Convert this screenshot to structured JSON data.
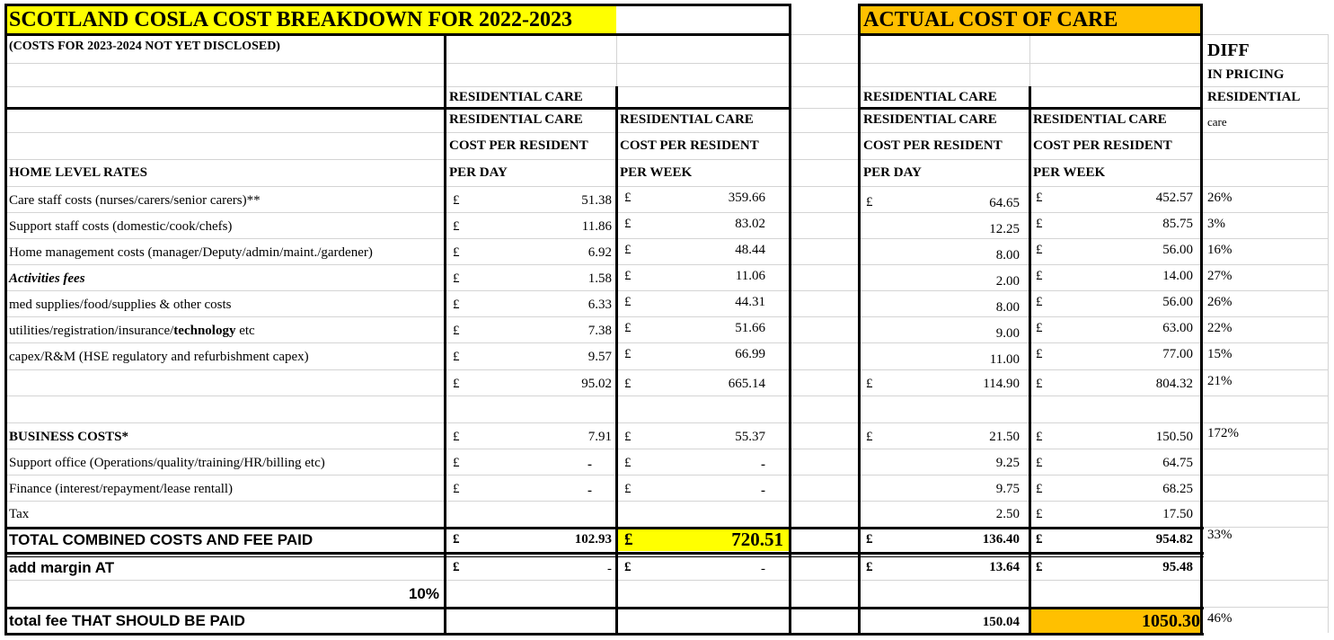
{
  "left": {
    "title": "SCOTLAND COSLA COST BREAKDOWN FOR 2022-2023",
    "subtitle": "(COSTS FOR 2023-2024 NOT YET DISCLOSED)",
    "group_header": "RESIDENTIAL CARE",
    "col_headers": [
      "RESIDENTIAL CARE",
      "RESIDENTIAL CARE"
    ],
    "col_sub": [
      "COST PER RESIDENT",
      "COST PER RESIDENT"
    ],
    "col_unit": [
      "PER DAY",
      "PER WEEK"
    ]
  },
  "right": {
    "title": "ACTUAL COST OF CARE",
    "group_header": "RESIDENTIAL CARE",
    "col_headers": [
      "RESIDENTIAL CARE",
      "RESIDENTIAL CARE"
    ],
    "col_sub": [
      "COST PER RESIDENT",
      "COST PER RESIDENT"
    ],
    "col_unit": [
      "PER DAY",
      "PER WEEK"
    ]
  },
  "diff": {
    "title": "DIFF",
    "line2": "IN PRICING",
    "line3": "RESIDENTIAL",
    "line4": "care"
  },
  "section_label": "HOME LEVEL RATES",
  "currency": "£",
  "rows": [
    {
      "label": "Care staff costs (nurses/carers/senior carers)**",
      "c_day": "51.38",
      "c_week": "359.66",
      "a_day": "64.65",
      "a_week": "452.57",
      "diff": "26%"
    },
    {
      "label": "Support staff costs (domestic/cook/chefs)",
      "c_day": "11.86",
      "c_week": "83.02",
      "a_day": "12.25",
      "a_week": "85.75",
      "diff": "3%"
    },
    {
      "label": "Home management costs (manager/Deputy/admin/maint./gardener)",
      "c_day": "6.92",
      "c_week": "48.44",
      "a_day": "8.00",
      "a_week": "56.00",
      "diff": "16%"
    },
    {
      "label": "Activities fees",
      "c_day": "1.58",
      "c_week": "11.06",
      "a_day": "2.00",
      "a_week": "14.00",
      "diff": "27%"
    },
    {
      "label": "med supplies/food/supplies & other costs",
      "c_day": "6.33",
      "c_week": "44.31",
      "a_day": "8.00",
      "a_week": "56.00",
      "diff": "26%"
    },
    {
      "label_pre": "utilities/registration/insurance/",
      "label_bold": "technology",
      "label_post": " etc",
      "c_day": "7.38",
      "c_week": "51.66",
      "a_day": "9.00",
      "a_week": "63.00",
      "diff": "22%"
    },
    {
      "label": "capex/R&M (HSE regulatory and refurbishment capex)",
      "c_day": "9.57",
      "c_week": "66.99",
      "a_day": "11.00",
      "a_week": "77.00",
      "diff": "15%"
    }
  ],
  "subtotal": {
    "c_day": "95.02",
    "c_week": "665.14",
    "a_day": "114.90",
    "a_week": "804.32",
    "diff": "21%"
  },
  "business": {
    "label": "BUSINESS COSTS*",
    "c_day": "7.91",
    "c_week": "55.37",
    "a_day": "21.50",
    "a_week": "150.50",
    "diff": "172%"
  },
  "support_office": {
    "label": "Support office (Operations/quality/training/HR/billing etc)",
    "c_day": "-",
    "c_week": "-",
    "a_day": "9.25",
    "a_week": "64.75"
  },
  "finance": {
    "label": "Finance (interest/repayment/lease rentall)",
    "c_day": "-",
    "c_week": "-",
    "a_day": "9.75",
    "a_week": "68.25"
  },
  "tax": {
    "label": "Tax",
    "a_day": "2.50",
    "a_week": "17.50"
  },
  "total": {
    "label": "TOTAL COMBINED COSTS AND FEE PAID",
    "c_day": "102.93",
    "c_week": "720.51",
    "a_day": "136.40",
    "a_week": "954.82",
    "diff": "33%"
  },
  "margin": {
    "label": "add margin AT",
    "pct": "10%",
    "c_day": "-",
    "c_week": "-",
    "a_day": "13.64",
    "a_week": "95.48"
  },
  "final": {
    "label": "total fee THAT SHOULD BE PAID",
    "a_day": "150.04",
    "a_week": "1050.30",
    "diff": "46%"
  }
}
